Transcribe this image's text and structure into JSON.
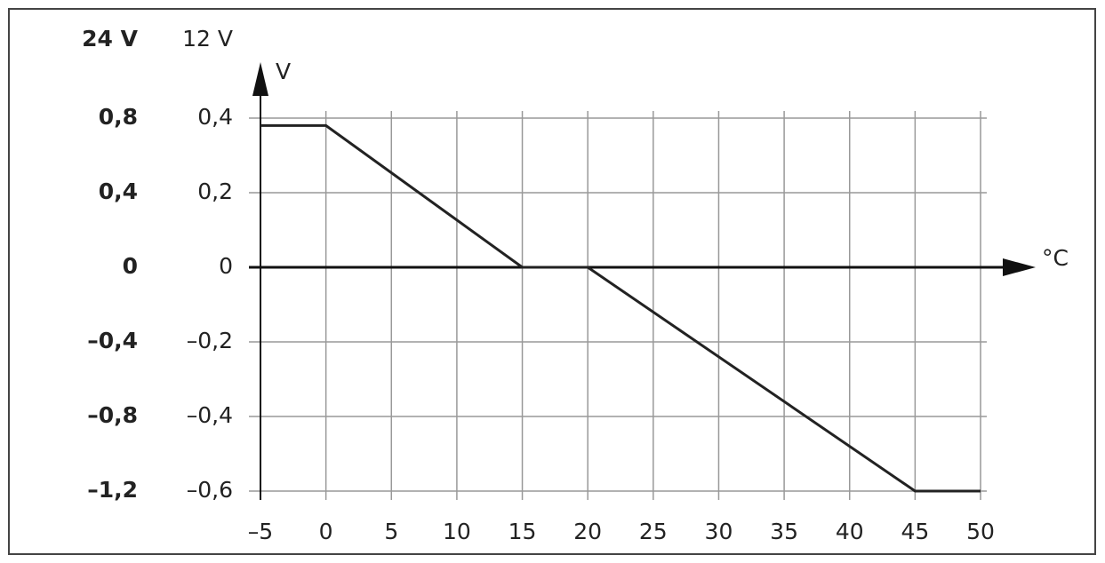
{
  "chart_data": {
    "type": "line",
    "y_label_24v": "24 V",
    "y_label_12v": "12 V",
    "y_axis_unit": "V",
    "x_axis_unit": "°C",
    "x": [
      -5,
      0,
      15,
      20,
      45,
      50
    ],
    "values": [
      0.38,
      0.38,
      0,
      0,
      -0.6,
      -0.6
    ],
    "color": "#222222",
    "xlim": [
      -5,
      50
    ],
    "xticks": [
      {
        "value": -5,
        "label": "–5"
      },
      0,
      5,
      10,
      15,
      20,
      25,
      30,
      35,
      40,
      45,
      50
    ],
    "ylim": [
      -0.6,
      0.4
    ],
    "yticks": [
      {
        "value": 0.4,
        "label": "0,4"
      },
      {
        "value": 0.2,
        "label": "0,2"
      },
      0,
      {
        "value": -0.2,
        "label": "–0,2"
      },
      {
        "value": -0.4,
        "label": "–0,4"
      },
      {
        "value": -0.6,
        "label": "–0,6"
      }
    ],
    "y2lim": [
      -1.2,
      0.8
    ],
    "y2ticks": [
      {
        "value": 0.8,
        "label": "0,8"
      },
      {
        "value": 0.4,
        "label": "0,4"
      },
      0,
      {
        "value": -0.4,
        "label": "–0,4"
      },
      {
        "value": -0.8,
        "label": "–0,8"
      },
      {
        "value": -1.2,
        "label": "–1,2"
      }
    ],
    "grid": true
  }
}
